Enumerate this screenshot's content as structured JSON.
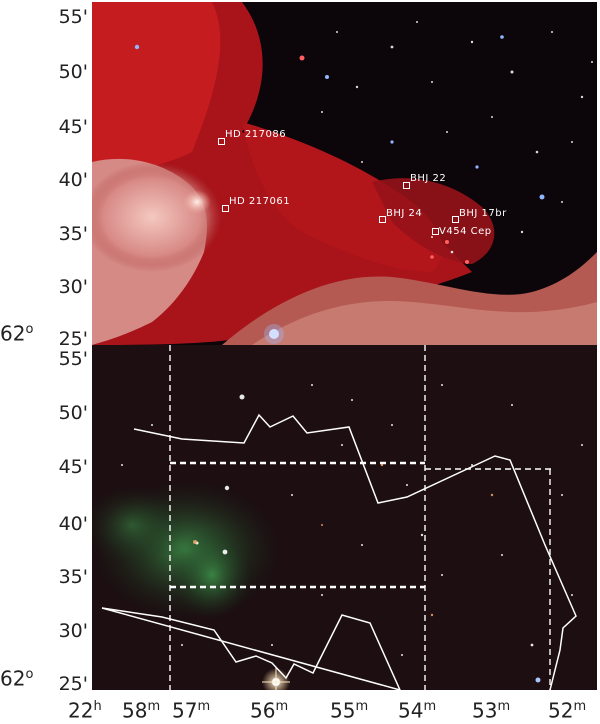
{
  "top_panel": {
    "y_ticks": [
      "55'",
      "50'",
      "45'",
      "40'",
      "35'",
      "30'",
      "25'"
    ],
    "y_corner_label": {
      "deg": "62",
      "sup": "o"
    },
    "stars": [
      {
        "label": "HD 217086"
      },
      {
        "label": "HD 217061"
      },
      {
        "label": "BHJ 22"
      },
      {
        "label": "BHJ 24"
      },
      {
        "label": "BHJ 17br"
      },
      {
        "label": "V454 Cep"
      }
    ]
  },
  "bottom_panel": {
    "y_ticks": [
      "55'",
      "50'",
      "45'",
      "40'",
      "35'",
      "30'",
      "25'"
    ],
    "y_corner_label": {
      "deg": "62",
      "sup": "o"
    }
  },
  "x_axis": {
    "ticks": [
      {
        "main": "22",
        "sup": "h"
      },
      {
        "main": "58",
        "sup": "m"
      },
      {
        "main": "57",
        "sup": "m"
      },
      {
        "main": "56",
        "sup": "m"
      },
      {
        "main": "55",
        "sup": "m"
      },
      {
        "main": "54",
        "sup": "m"
      },
      {
        "main": "53",
        "sup": "m"
      },
      {
        "main": "52",
        "sup": "m"
      }
    ]
  },
  "colors": {
    "nebula_red": "#c81818",
    "nebula_green": "#2e7a3a",
    "sky_dark": "#0d0708",
    "outline": "#ffffff"
  }
}
